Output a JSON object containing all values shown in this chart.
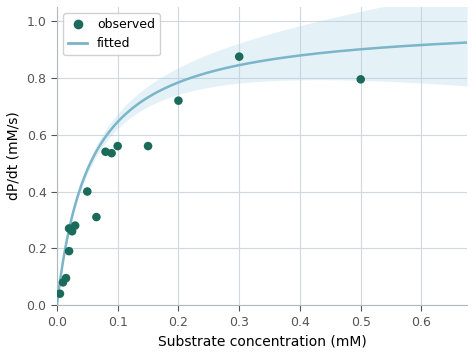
{
  "observed_x": [
    0.005,
    0.01,
    0.015,
    0.02,
    0.02,
    0.025,
    0.03,
    0.05,
    0.065,
    0.08,
    0.09,
    0.1,
    0.15,
    0.2,
    0.3,
    0.5
  ],
  "observed_y": [
    0.04,
    0.08,
    0.095,
    0.19,
    0.27,
    0.26,
    0.28,
    0.4,
    0.31,
    0.54,
    0.535,
    0.56,
    0.56,
    0.72,
    0.875,
    0.795
  ],
  "Vmax": 1.0,
  "Km": 0.055,
  "x_min": 0.0,
  "x_max": 0.675,
  "y_min": 0.0,
  "y_max": 1.05,
  "xlabel": "Substrate concentration (mM)",
  "ylabel": "dP/dt (mM/s)",
  "line_color": "#7ab5c9",
  "fill_color": "#a8d4e6",
  "dot_color": "#1a6b5a",
  "fill_alpha": 0.3,
  "legend_observed": "observed",
  "legend_fitted": "fitted",
  "background_color": "#ffffff",
  "figure_bg": "#ffffff",
  "grid_color": "#d0d8e0",
  "xticks": [
    0.0,
    0.1,
    0.2,
    0.3,
    0.4,
    0.5,
    0.6
  ],
  "yticks": [
    0.0,
    0.2,
    0.4,
    0.6,
    0.8,
    1.0
  ]
}
